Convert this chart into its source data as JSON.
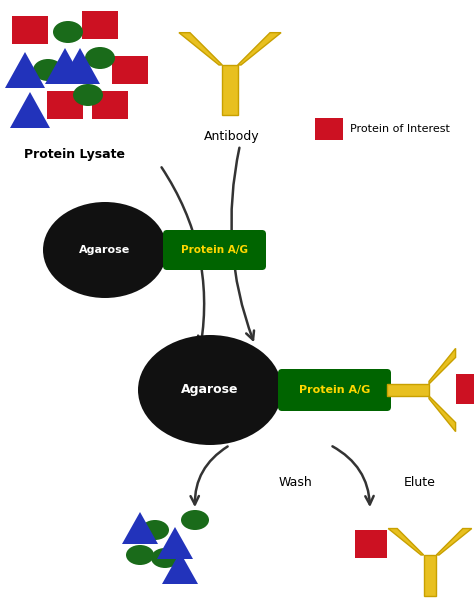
{
  "bg_color": "#ffffff",
  "gold": "#E8C020",
  "gold_dark": "#C8A000",
  "red": "#CC1122",
  "green": "#1a6b1a",
  "blue": "#2233bb",
  "ag_color": "#111111",
  "pag_color": "#006400",
  "pag_text": "#FFD700",
  "agar_text": "#ffffff",
  "protein_lysate_label": "Protein Lysate",
  "antibody_label": "Antibody",
  "protein_of_interest_label": "Protein of Interest",
  "wash_label": "Wash",
  "elute_label": "Elute"
}
